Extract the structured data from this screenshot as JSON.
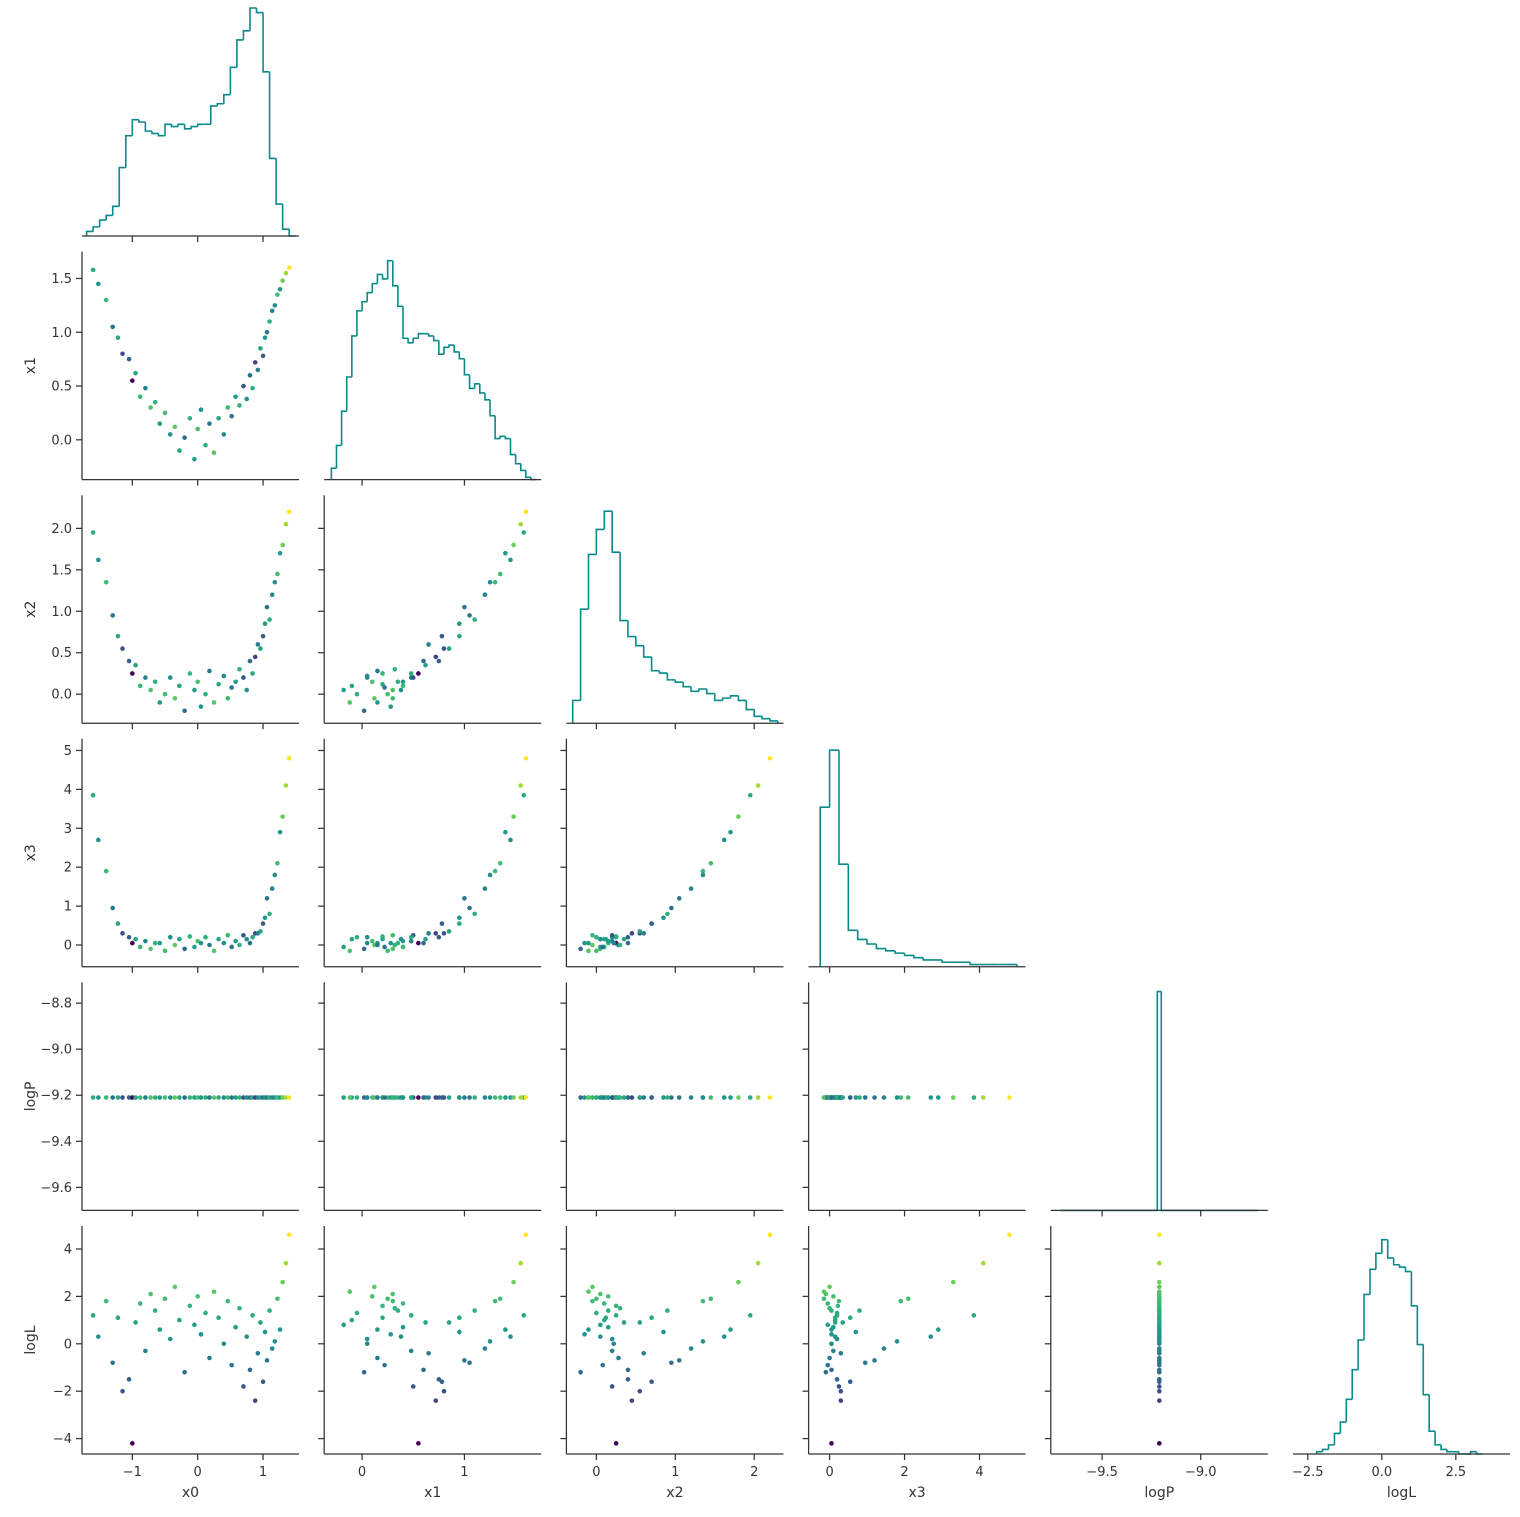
{
  "chart_data": {
    "type": "corner",
    "variables": [
      "x0",
      "x1",
      "x2",
      "x3",
      "logP",
      "logL"
    ],
    "cmap": "viridis",
    "hist_color": "#0a8a8a",
    "axes": [
      {
        "xlim": [
          -1.77,
          1.55
        ],
        "xticks": [
          {
            "value": -1,
            "label": "−1"
          },
          0,
          1
        ]
      },
      {
        "xlim": [
          -0.37,
          1.75
        ],
        "xticks": [
          0,
          1
        ],
        "ylim": [
          -0.37,
          1.75
        ],
        "yticks": [
          {
            "value": 0,
            "label": "0.0"
          },
          0.5,
          {
            "value": 1,
            "label": "1.0"
          },
          1.5
        ]
      },
      {
        "xlim": [
          -0.38,
          2.37
        ],
        "xticks": [
          0,
          1,
          2
        ],
        "ylim": [
          -0.35,
          2.4
        ],
        "yticks": [
          {
            "value": 0,
            "label": "0.0"
          },
          0.5,
          {
            "value": 1,
            "label": "1.0"
          },
          1.5,
          {
            "value": 2,
            "label": "2.0"
          }
        ]
      },
      {
        "xlim": [
          -0.56,
          5.23
        ],
        "xticks": [
          0,
          2,
          4
        ],
        "ylim": [
          -0.56,
          5.3
        ],
        "yticks": [
          0,
          1,
          2,
          3,
          4,
          5
        ]
      },
      {
        "xlim": [
          -9.76,
          -8.66
        ],
        "xticks": [
          {
            "value": -9.5,
            "label": "−9.5"
          },
          {
            "value": -9,
            "label": "−9.0"
          }
        ],
        "ylim": [
          -9.7,
          -8.71
        ],
        "yticks": [
          {
            "value": -9.6,
            "label": "−9.6"
          },
          {
            "value": -9.4,
            "label": "−9.4"
          },
          {
            "value": -9.2,
            "label": "−9.2"
          },
          {
            "value": -9,
            "label": "−9.0"
          },
          {
            "value": -8.8,
            "label": "−8.8"
          }
        ]
      },
      {
        "xlim": [
          -3.0,
          4.33
        ],
        "xticks": [
          {
            "value": -2.5,
            "label": "−2.5"
          },
          {
            "value": 0,
            "label": "0.0"
          },
          2.5
        ],
        "ylim": [
          -4.65,
          4.97
        ],
        "yticks": [
          {
            "value": -4,
            "label": "−4"
          },
          {
            "value": -2,
            "label": "−2"
          },
          0,
          2,
          4
        ]
      }
    ],
    "histograms": [
      {
        "bins": [
          -1.7,
          -1.6,
          -1.5,
          -1.4,
          -1.3,
          -1.2,
          -1.1,
          -1,
          -0.9,
          -0.8,
          -0.7,
          -0.6,
          -0.5,
          -0.4,
          -0.3,
          -0.2,
          -0.1,
          0,
          0.1,
          0.2,
          0.3,
          0.4,
          0.5,
          0.6,
          0.7,
          0.8,
          0.9,
          1,
          1.1,
          1.2,
          1.3,
          1.4,
          1.5
        ],
        "counts": [
          2,
          4,
          7,
          9,
          13,
          30,
          44,
          51,
          50,
          46,
          45,
          44,
          49,
          48,
          49,
          47,
          48,
          49,
          49,
          57,
          58,
          62,
          74,
          86,
          90,
          100,
          98,
          72,
          34,
          14,
          3,
          0
        ],
        "ylim": [
          0,
          100
        ]
      },
      {
        "bins": [
          -0.3,
          -0.25,
          -0.2,
          -0.15,
          -0.1,
          -0.05,
          0,
          0.05,
          0.1,
          0.15,
          0.2,
          0.25,
          0.3,
          0.35,
          0.4,
          0.45,
          0.5,
          0.55,
          0.6,
          0.65,
          0.7,
          0.75,
          0.8,
          0.85,
          0.9,
          0.95,
          1,
          1.05,
          1.1,
          1.15,
          1.2,
          1.25,
          1.3,
          1.35,
          1.4,
          1.45,
          1.5,
          1.55,
          1.6,
          1.65,
          1.7
        ],
        "counts": [
          5,
          15,
          30,
          45,
          63,
          74,
          78,
          82,
          86,
          90,
          88,
          96,
          85,
          76,
          62,
          60,
          62,
          64,
          64,
          63,
          61,
          55,
          58,
          59,
          56,
          53,
          46,
          40,
          42,
          38,
          35,
          28,
          18,
          19,
          18,
          11,
          7,
          4,
          1,
          0
        ],
        "ylim": [
          0,
          100
        ]
      },
      {
        "bins": [
          -0.3,
          -0.2,
          -0.1,
          0,
          0.1,
          0.2,
          0.3,
          0.4,
          0.5,
          0.6,
          0.7,
          0.8,
          0.9,
          1,
          1.1,
          1.2,
          1.3,
          1.4,
          1.5,
          1.6,
          1.7,
          1.8,
          1.9,
          2,
          2.1,
          2.2,
          2.3
        ],
        "counts": [
          10,
          50,
          74,
          85,
          93,
          75,
          45,
          38,
          34,
          29,
          23,
          22,
          19,
          18,
          16,
          14,
          15,
          13,
          10,
          11,
          12,
          10,
          6,
          3,
          2,
          1
        ],
        "ylim": [
          0,
          100
        ]
      },
      {
        "bins": [
          -0.25,
          0,
          0.25,
          0.5,
          0.75,
          1,
          1.25,
          1.5,
          1.75,
          2,
          2.25,
          2.5,
          2.75,
          3,
          3.25,
          3.5,
          3.75,
          4,
          4.25,
          4.5,
          4.75,
          5
        ],
        "counts": [
          70,
          95,
          45,
          16,
          12,
          10,
          8,
          7,
          6,
          5,
          4,
          3,
          3,
          2,
          2,
          2,
          1,
          1,
          1,
          1,
          1
        ],
        "ylim": [
          0,
          100
        ]
      },
      {
        "bins": [
          -9.71,
          -9.22,
          -9.2,
          -8.71
        ],
        "counts": [
          0,
          96,
          0
        ],
        "ylim": [
          0,
          100
        ]
      },
      {
        "bins": [
          -2.2,
          -2,
          -1.8,
          -1.6,
          -1.4,
          -1.2,
          -1,
          -0.8,
          -0.6,
          -0.4,
          -0.2,
          0,
          0.2,
          0.4,
          0.6,
          0.8,
          1,
          1.2,
          1.4,
          1.6,
          1.8,
          2,
          2.2,
          2.4,
          2.6,
          2.8,
          3,
          3.2,
          3.4
        ],
        "counts": [
          1,
          2,
          4,
          9,
          14,
          24,
          37,
          50,
          70,
          81,
          88,
          94,
          86,
          83,
          82,
          80,
          65,
          48,
          26,
          10,
          4,
          2,
          1,
          1,
          0,
          0,
          1,
          0
        ],
        "ylim": [
          0,
          100
        ]
      }
    ],
    "samples": [
      [
        -1.6,
        1.58,
        1.95,
        3.85,
        -9.21,
        1.2
      ],
      [
        -1.52,
        1.45,
        1.62,
        2.7,
        -9.21,
        0.3
      ],
      [
        -1.4,
        1.3,
        1.35,
        1.9,
        -9.21,
        1.8
      ],
      [
        -1.3,
        1.05,
        0.95,
        0.95,
        -9.21,
        -0.8
      ],
      [
        -1.22,
        0.95,
        0.7,
        0.55,
        -9.21,
        1.1
      ],
      [
        -1.15,
        0.8,
        0.55,
        0.3,
        -9.21,
        -2.0
      ],
      [
        -1.05,
        0.75,
        0.4,
        0.2,
        -9.21,
        -1.5
      ],
      [
        -1.0,
        0.55,
        0.25,
        0.05,
        -9.21,
        -4.2
      ],
      [
        -0.95,
        0.62,
        0.35,
        0.15,
        -9.21,
        0.9
      ],
      [
        -0.88,
        0.4,
        0.1,
        -0.05,
        -9.21,
        1.7
      ],
      [
        -0.8,
        0.48,
        0.2,
        0.1,
        -9.21,
        -0.3
      ],
      [
        -0.72,
        0.3,
        0.05,
        -0.1,
        -9.21,
        2.1
      ],
      [
        -0.65,
        0.35,
        0.15,
        0.05,
        -9.21,
        1.4
      ],
      [
        -0.58,
        0.15,
        -0.1,
        0.05,
        -9.21,
        0.6
      ],
      [
        -0.5,
        0.25,
        0.0,
        -0.15,
        -9.21,
        1.9
      ],
      [
        -0.42,
        0.05,
        0.2,
        0.2,
        -9.21,
        0.2
      ],
      [
        -0.35,
        0.12,
        -0.05,
        0.0,
        -9.21,
        2.4
      ],
      [
        -0.28,
        -0.1,
        0.1,
        0.15,
        -9.21,
        1.0
      ],
      [
        -0.2,
        0.02,
        -0.2,
        -0.1,
        -9.21,
        -1.2
      ],
      [
        -0.12,
        0.2,
        0.25,
        0.22,
        -9.21,
        1.6
      ],
      [
        -0.05,
        -0.18,
        0.05,
        -0.05,
        -9.21,
        0.8
      ],
      [
        0.0,
        0.1,
        0.15,
        0.1,
        -9.21,
        2.0
      ],
      [
        0.05,
        0.28,
        -0.15,
        0.05,
        -9.21,
        0.4
      ],
      [
        0.12,
        -0.05,
        0.0,
        0.2,
        -9.21,
        1.3
      ],
      [
        0.18,
        0.15,
        0.28,
        0.0,
        -9.21,
        -0.6
      ],
      [
        0.25,
        -0.12,
        -0.1,
        -0.15,
        -9.21,
        2.2
      ],
      [
        0.32,
        0.2,
        0.12,
        0.15,
        -9.21,
        1.1
      ],
      [
        0.4,
        0.05,
        0.22,
        0.05,
        -9.21,
        0.0
      ],
      [
        0.46,
        0.3,
        -0.05,
        0.25,
        -9.21,
        1.8
      ],
      [
        0.52,
        0.22,
        0.08,
        -0.05,
        -9.21,
        -0.9
      ],
      [
        0.58,
        0.4,
        0.15,
        0.1,
        -9.21,
        0.7
      ],
      [
        0.64,
        0.32,
        0.3,
        0.0,
        -9.21,
        1.5
      ],
      [
        0.7,
        0.5,
        0.2,
        0.25,
        -9.21,
        -1.8
      ],
      [
        0.75,
        0.38,
        0.05,
        0.15,
        -9.21,
        0.3
      ],
      [
        0.8,
        0.6,
        0.4,
        0.05,
        -9.21,
        -1.1
      ],
      [
        0.84,
        0.48,
        0.25,
        0.2,
        -9.21,
        1.2
      ],
      [
        0.88,
        0.72,
        0.45,
        0.3,
        -9.21,
        -2.4
      ],
      [
        0.92,
        0.65,
        0.6,
        0.3,
        -9.21,
        -0.4
      ],
      [
        0.96,
        0.85,
        0.55,
        0.35,
        -9.21,
        0.9
      ],
      [
        1.0,
        0.78,
        0.7,
        0.55,
        -9.21,
        -1.6
      ],
      [
        1.03,
        0.95,
        0.85,
        0.7,
        -9.21,
        0.5
      ],
      [
        1.06,
        1.0,
        1.05,
        1.2,
        -9.21,
        -0.7
      ],
      [
        1.1,
        1.1,
        0.9,
        0.8,
        -9.21,
        1.4
      ],
      [
        1.14,
        1.2,
        1.2,
        1.45,
        -9.21,
        -0.2
      ],
      [
        1.18,
        1.25,
        1.35,
        1.8,
        -9.21,
        0.1
      ],
      [
        1.22,
        1.35,
        1.45,
        2.1,
        -9.21,
        1.9
      ],
      [
        1.26,
        1.4,
        1.7,
        2.9,
        -9.21,
        0.6
      ],
      [
        1.3,
        1.48,
        1.8,
        3.3,
        -9.21,
        2.6
      ],
      [
        1.35,
        1.55,
        2.05,
        4.1,
        -9.21,
        3.4
      ],
      [
        1.4,
        1.6,
        2.2,
        4.8,
        -9.21,
        4.6
      ]
    ]
  }
}
